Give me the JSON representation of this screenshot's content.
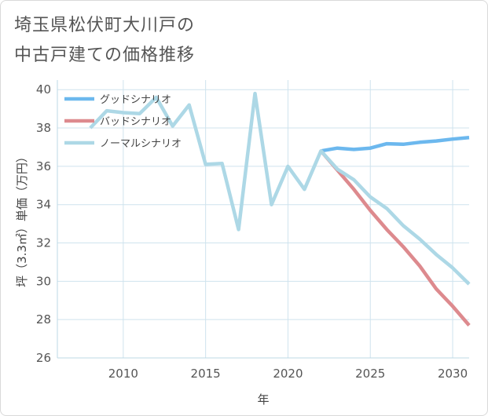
{
  "title": {
    "line1": "埼玉県松伏町大川戸の",
    "line2": "中古戸建ての価格推移"
  },
  "chart_data": {
    "type": "line",
    "xlabel": "年",
    "ylabel": "坪（3.3㎡）単価（万円）",
    "xlim": [
      2006,
      2031
    ],
    "ylim": [
      26,
      40.5
    ],
    "x_ticks": [
      2010,
      2015,
      2020,
      2025,
      2030
    ],
    "y_ticks": [
      26,
      28,
      30,
      32,
      34,
      36,
      38,
      40
    ],
    "grid": true,
    "legend_position": "top-left",
    "series": [
      {
        "name": "グッドシナリオ",
        "color": "#6cb8ee",
        "x": [
          2022,
          2023,
          2024,
          2025,
          2026,
          2027,
          2028,
          2029,
          2030,
          2031
        ],
        "values": [
          36.8,
          36.95,
          36.88,
          36.95,
          37.18,
          37.15,
          37.25,
          37.32,
          37.42,
          37.5
        ]
      },
      {
        "name": "バッドシナリオ",
        "color": "#dd8a8e",
        "x": [
          2022,
          2023,
          2024,
          2025,
          2026,
          2027,
          2028,
          2029,
          2030,
          2031
        ],
        "values": [
          36.8,
          35.8,
          34.8,
          33.7,
          32.7,
          31.8,
          30.8,
          29.6,
          28.7,
          27.7
        ]
      },
      {
        "name": "ノーマルシナリオ",
        "color": "#add8e6",
        "x": [
          2008,
          2009,
          2010,
          2011,
          2012,
          2013,
          2014,
          2015,
          2016,
          2017,
          2018,
          2019,
          2020,
          2021,
          2022,
          2023,
          2024,
          2025,
          2026,
          2027,
          2028,
          2029,
          2030,
          2031
        ],
        "values": [
          38.0,
          38.9,
          38.8,
          38.75,
          39.6,
          38.1,
          39.2,
          36.1,
          36.15,
          32.7,
          39.8,
          34.0,
          36.0,
          34.8,
          36.8,
          35.85,
          35.3,
          34.4,
          33.8,
          32.9,
          32.2,
          31.4,
          30.7,
          29.85
        ]
      }
    ]
  }
}
